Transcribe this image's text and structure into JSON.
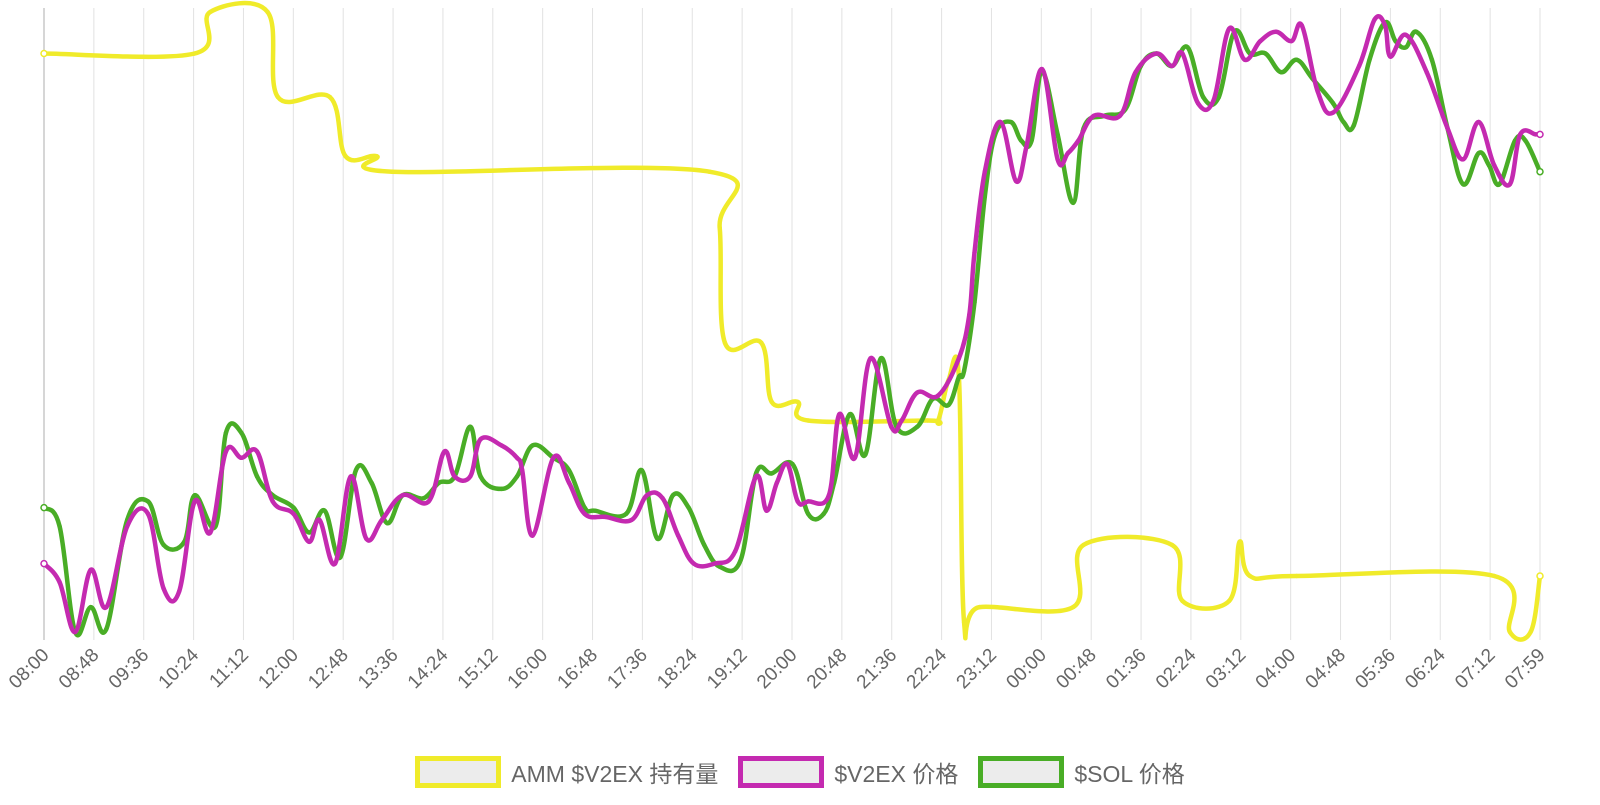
{
  "chart_data": {
    "type": "line",
    "title": "",
    "grid": true,
    "legend_position": "bottom",
    "x_tick_labels": [
      "08:00",
      "08:48",
      "09:36",
      "10:24",
      "11:12",
      "12:00",
      "12:48",
      "13:36",
      "14:24",
      "15:12",
      "16:00",
      "16:48",
      "17:36",
      "18:24",
      "19:12",
      "20:00",
      "20:48",
      "21:36",
      "22:24",
      "23:12",
      "00:00",
      "00:48",
      "01:36",
      "02:24",
      "03:12",
      "04:00",
      "04:48",
      "05:36",
      "06:24",
      "07:12",
      "07:59"
    ],
    "x_range": [
      0,
      1439
    ],
    "y_range": [
      0,
      100
    ],
    "series": [
      {
        "name": "AMM $V2EX 持有量",
        "color": "#f0eb2a",
        "points": [
          [
            0,
            93
          ],
          [
            145,
            93
          ],
          [
            160,
            99.7
          ],
          [
            215,
            99.7
          ],
          [
            225,
            86
          ],
          [
            275,
            86
          ],
          [
            290,
            76.5
          ],
          [
            320,
            76.5
          ],
          [
            335,
            74
          ],
          [
            640,
            74
          ],
          [
            650,
            65
          ],
          [
            655,
            46.5
          ],
          [
            690,
            46.5
          ],
          [
            700,
            37
          ],
          [
            725,
            37
          ],
          [
            735,
            34
          ],
          [
            850,
            34
          ],
          [
            860,
            34
          ],
          [
            870,
            40.5
          ],
          [
            880,
            41
          ],
          [
            885,
            1.5
          ],
          [
            900,
            4
          ],
          [
            990,
            4
          ],
          [
            1000,
            14
          ],
          [
            1085,
            14
          ],
          [
            1095,
            5
          ],
          [
            1140,
            5
          ],
          [
            1150,
            14.5
          ],
          [
            1160,
            9
          ],
          [
            1205,
            9
          ],
          [
            1395,
            9
          ],
          [
            1410,
            0
          ],
          [
            1430,
            0
          ],
          [
            1439,
            9
          ]
        ]
      },
      {
        "name": "$V2EX 价格",
        "color": "#c42ab0",
        "points": [
          [
            0,
            11
          ],
          [
            15,
            8
          ],
          [
            30,
            0
          ],
          [
            45,
            10
          ],
          [
            60,
            4
          ],
          [
            80,
            17
          ],
          [
            100,
            19
          ],
          [
            115,
            7
          ],
          [
            130,
            6.5
          ],
          [
            145,
            21
          ],
          [
            160,
            16
          ],
          [
            175,
            29
          ],
          [
            190,
            28
          ],
          [
            205,
            29
          ],
          [
            220,
            21
          ],
          [
            240,
            19
          ],
          [
            255,
            14.5
          ],
          [
            265,
            18
          ],
          [
            280,
            11
          ],
          [
            295,
            25
          ],
          [
            310,
            15
          ],
          [
            325,
            18
          ],
          [
            345,
            22
          ],
          [
            370,
            21
          ],
          [
            385,
            29
          ],
          [
            395,
            25
          ],
          [
            410,
            25
          ],
          [
            420,
            31
          ],
          [
            440,
            30
          ],
          [
            455,
            28
          ],
          [
            460,
            26
          ],
          [
            470,
            15.5
          ],
          [
            490,
            28
          ],
          [
            505,
            24
          ],
          [
            520,
            19
          ],
          [
            540,
            18.5
          ],
          [
            565,
            18
          ],
          [
            580,
            22
          ],
          [
            595,
            21.5
          ],
          [
            610,
            15.5
          ],
          [
            625,
            11
          ],
          [
            645,
            11
          ],
          [
            665,
            13
          ],
          [
            685,
            25
          ],
          [
            695,
            19.5
          ],
          [
            705,
            24
          ],
          [
            715,
            27
          ],
          [
            725,
            21
          ],
          [
            735,
            21
          ],
          [
            755,
            22
          ],
          [
            765,
            35
          ],
          [
            780,
            28
          ],
          [
            795,
            44
          ],
          [
            815,
            33
          ],
          [
            825,
            34
          ],
          [
            840,
            38.5
          ],
          [
            860,
            38
          ],
          [
            880,
            44
          ],
          [
            890,
            51
          ],
          [
            895,
            61
          ],
          [
            905,
            74
          ],
          [
            920,
            82
          ],
          [
            935,
            72.5
          ],
          [
            945,
            78
          ],
          [
            960,
            90.5
          ],
          [
            975,
            76
          ],
          [
            985,
            77
          ],
          [
            995,
            79
          ],
          [
            1010,
            83
          ],
          [
            1035,
            83
          ],
          [
            1050,
            90
          ],
          [
            1070,
            93
          ],
          [
            1085,
            91
          ],
          [
            1095,
            93
          ],
          [
            1110,
            85
          ],
          [
            1125,
            85.5
          ],
          [
            1140,
            97
          ],
          [
            1155,
            92
          ],
          [
            1170,
            95
          ],
          [
            1185,
            96.5
          ],
          [
            1200,
            95
          ],
          [
            1210,
            97.5
          ],
          [
            1225,
            87
          ],
          [
            1240,
            83.5
          ],
          [
            1265,
            91
          ],
          [
            1280,
            98.5
          ],
          [
            1290,
            97.5
          ],
          [
            1295,
            92.5
          ],
          [
            1310,
            96
          ],
          [
            1330,
            90
          ],
          [
            1350,
            81
          ],
          [
            1365,
            76
          ],
          [
            1380,
            82
          ],
          [
            1395,
            75
          ],
          [
            1410,
            72
          ],
          [
            1420,
            80
          ],
          [
            1435,
            80
          ],
          [
            1439,
            80
          ]
        ]
      },
      {
        "name": "$SOL 价格",
        "color": "#49ad26",
        "points": [
          [
            0,
            20
          ],
          [
            15,
            17
          ],
          [
            30,
            0
          ],
          [
            45,
            4
          ],
          [
            60,
            0.5
          ],
          [
            80,
            18
          ],
          [
            100,
            21
          ],
          [
            115,
            14
          ],
          [
            135,
            14.5
          ],
          [
            145,
            22
          ],
          [
            165,
            17
          ],
          [
            175,
            32
          ],
          [
            190,
            32
          ],
          [
            205,
            25
          ],
          [
            220,
            22
          ],
          [
            240,
            20
          ],
          [
            255,
            16
          ],
          [
            270,
            19.5
          ],
          [
            285,
            12
          ],
          [
            300,
            26
          ],
          [
            315,
            24
          ],
          [
            330,
            17.5
          ],
          [
            345,
            22
          ],
          [
            365,
            21.5
          ],
          [
            380,
            24
          ],
          [
            395,
            25
          ],
          [
            410,
            33
          ],
          [
            420,
            25
          ],
          [
            440,
            23
          ],
          [
            455,
            25
          ],
          [
            470,
            30
          ],
          [
            490,
            28
          ],
          [
            505,
            26
          ],
          [
            520,
            20
          ],
          [
            530,
            19.5
          ],
          [
            560,
            19
          ],
          [
            575,
            26
          ],
          [
            590,
            15
          ],
          [
            605,
            22
          ],
          [
            620,
            20
          ],
          [
            635,
            14
          ],
          [
            650,
            10.5
          ],
          [
            670,
            11.5
          ],
          [
            685,
            25.5
          ],
          [
            700,
            25.5
          ],
          [
            720,
            27
          ],
          [
            735,
            19
          ],
          [
            750,
            19
          ],
          [
            760,
            24
          ],
          [
            775,
            35
          ],
          [
            790,
            28.5
          ],
          [
            805,
            44
          ],
          [
            820,
            33
          ],
          [
            840,
            33
          ],
          [
            855,
            37.5
          ],
          [
            870,
            36.5
          ],
          [
            880,
            41
          ],
          [
            885,
            42
          ],
          [
            895,
            53
          ],
          [
            905,
            70
          ],
          [
            915,
            80
          ],
          [
            930,
            82
          ],
          [
            940,
            79
          ],
          [
            950,
            79
          ],
          [
            960,
            90
          ],
          [
            975,
            80
          ],
          [
            990,
            69
          ],
          [
            1000,
            81
          ],
          [
            1020,
            83
          ],
          [
            1040,
            84
          ],
          [
            1055,
            91
          ],
          [
            1070,
            93
          ],
          [
            1085,
            91
          ],
          [
            1100,
            94
          ],
          [
            1115,
            86
          ],
          [
            1130,
            86
          ],
          [
            1145,
            96.5
          ],
          [
            1160,
            93
          ],
          [
            1175,
            93
          ],
          [
            1190,
            90
          ],
          [
            1205,
            92
          ],
          [
            1220,
            89
          ],
          [
            1240,
            85
          ],
          [
            1250,
            82
          ],
          [
            1260,
            81.5
          ],
          [
            1275,
            92
          ],
          [
            1290,
            98
          ],
          [
            1300,
            95
          ],
          [
            1310,
            94
          ],
          [
            1320,
            96.5
          ],
          [
            1335,
            92
          ],
          [
            1350,
            81
          ],
          [
            1365,
            72
          ],
          [
            1380,
            77
          ],
          [
            1390,
            75
          ],
          [
            1400,
            72
          ],
          [
            1415,
            79
          ],
          [
            1425,
            79
          ],
          [
            1439,
            74
          ]
        ]
      }
    ]
  }
}
